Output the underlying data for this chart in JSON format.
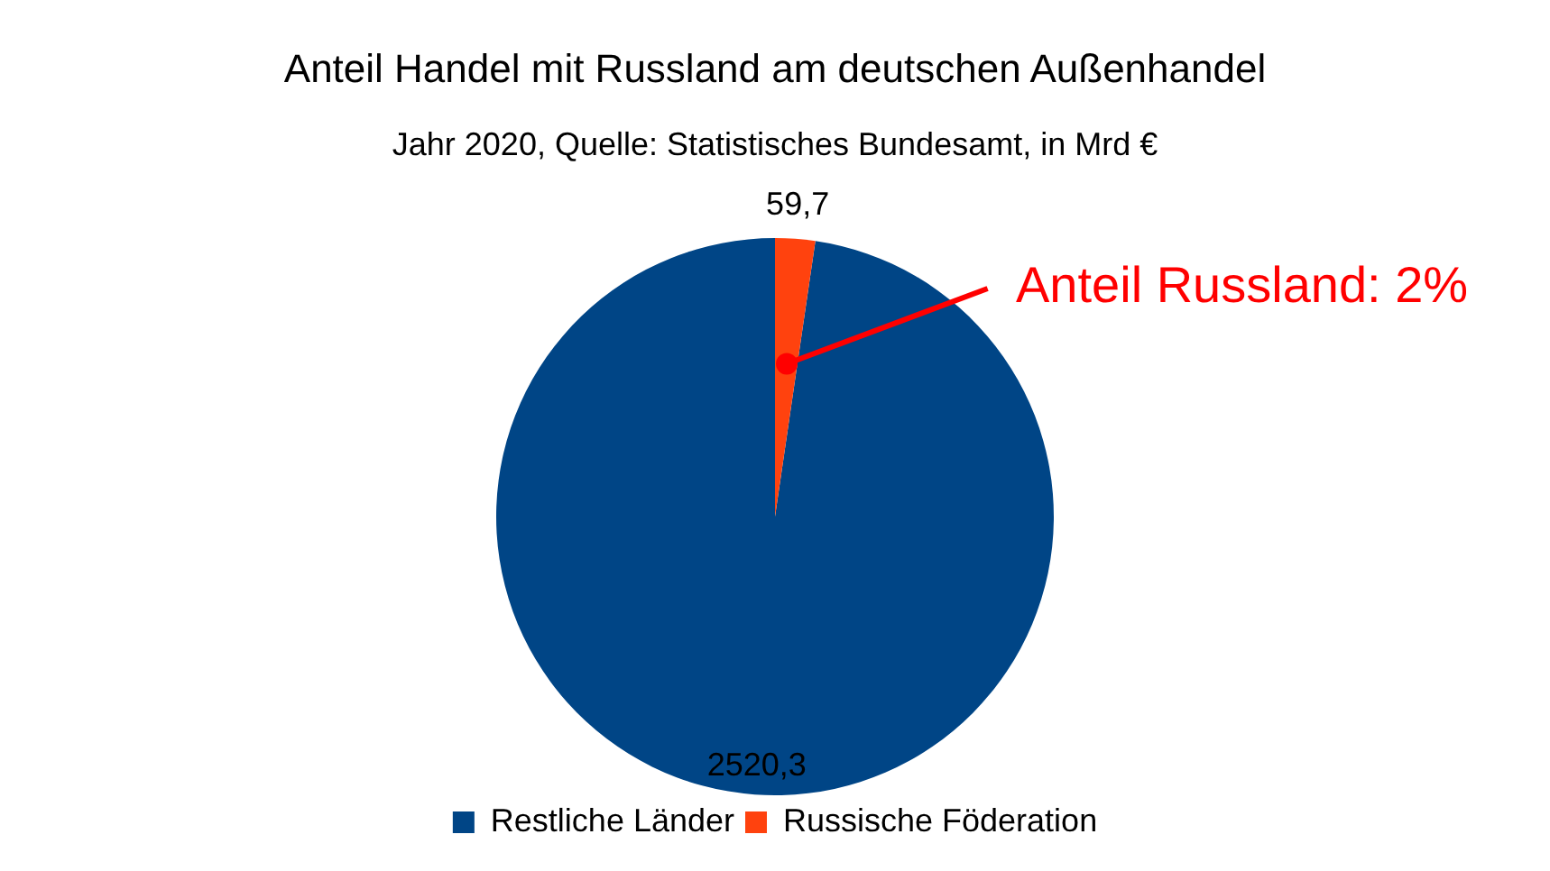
{
  "chart_data": {
    "type": "pie",
    "title": "Anteil Handel mit Russland am deutschen Außenhandel",
    "subtitle": "Jahr 2020, Quelle: Statistisches Bundesamt, in Mrd €",
    "categories": [
      "Restliche Länder",
      "Russische Föderation"
    ],
    "values": [
      2520.3,
      59.7
    ],
    "colors": [
      "#004586",
      "#ff420e"
    ],
    "value_labels": [
      "2520,3",
      "59,7"
    ],
    "annotations": [
      {
        "text": "Anteil Russland: 2%",
        "x": "Russische Föderation"
      }
    ],
    "legend": "bottom"
  }
}
